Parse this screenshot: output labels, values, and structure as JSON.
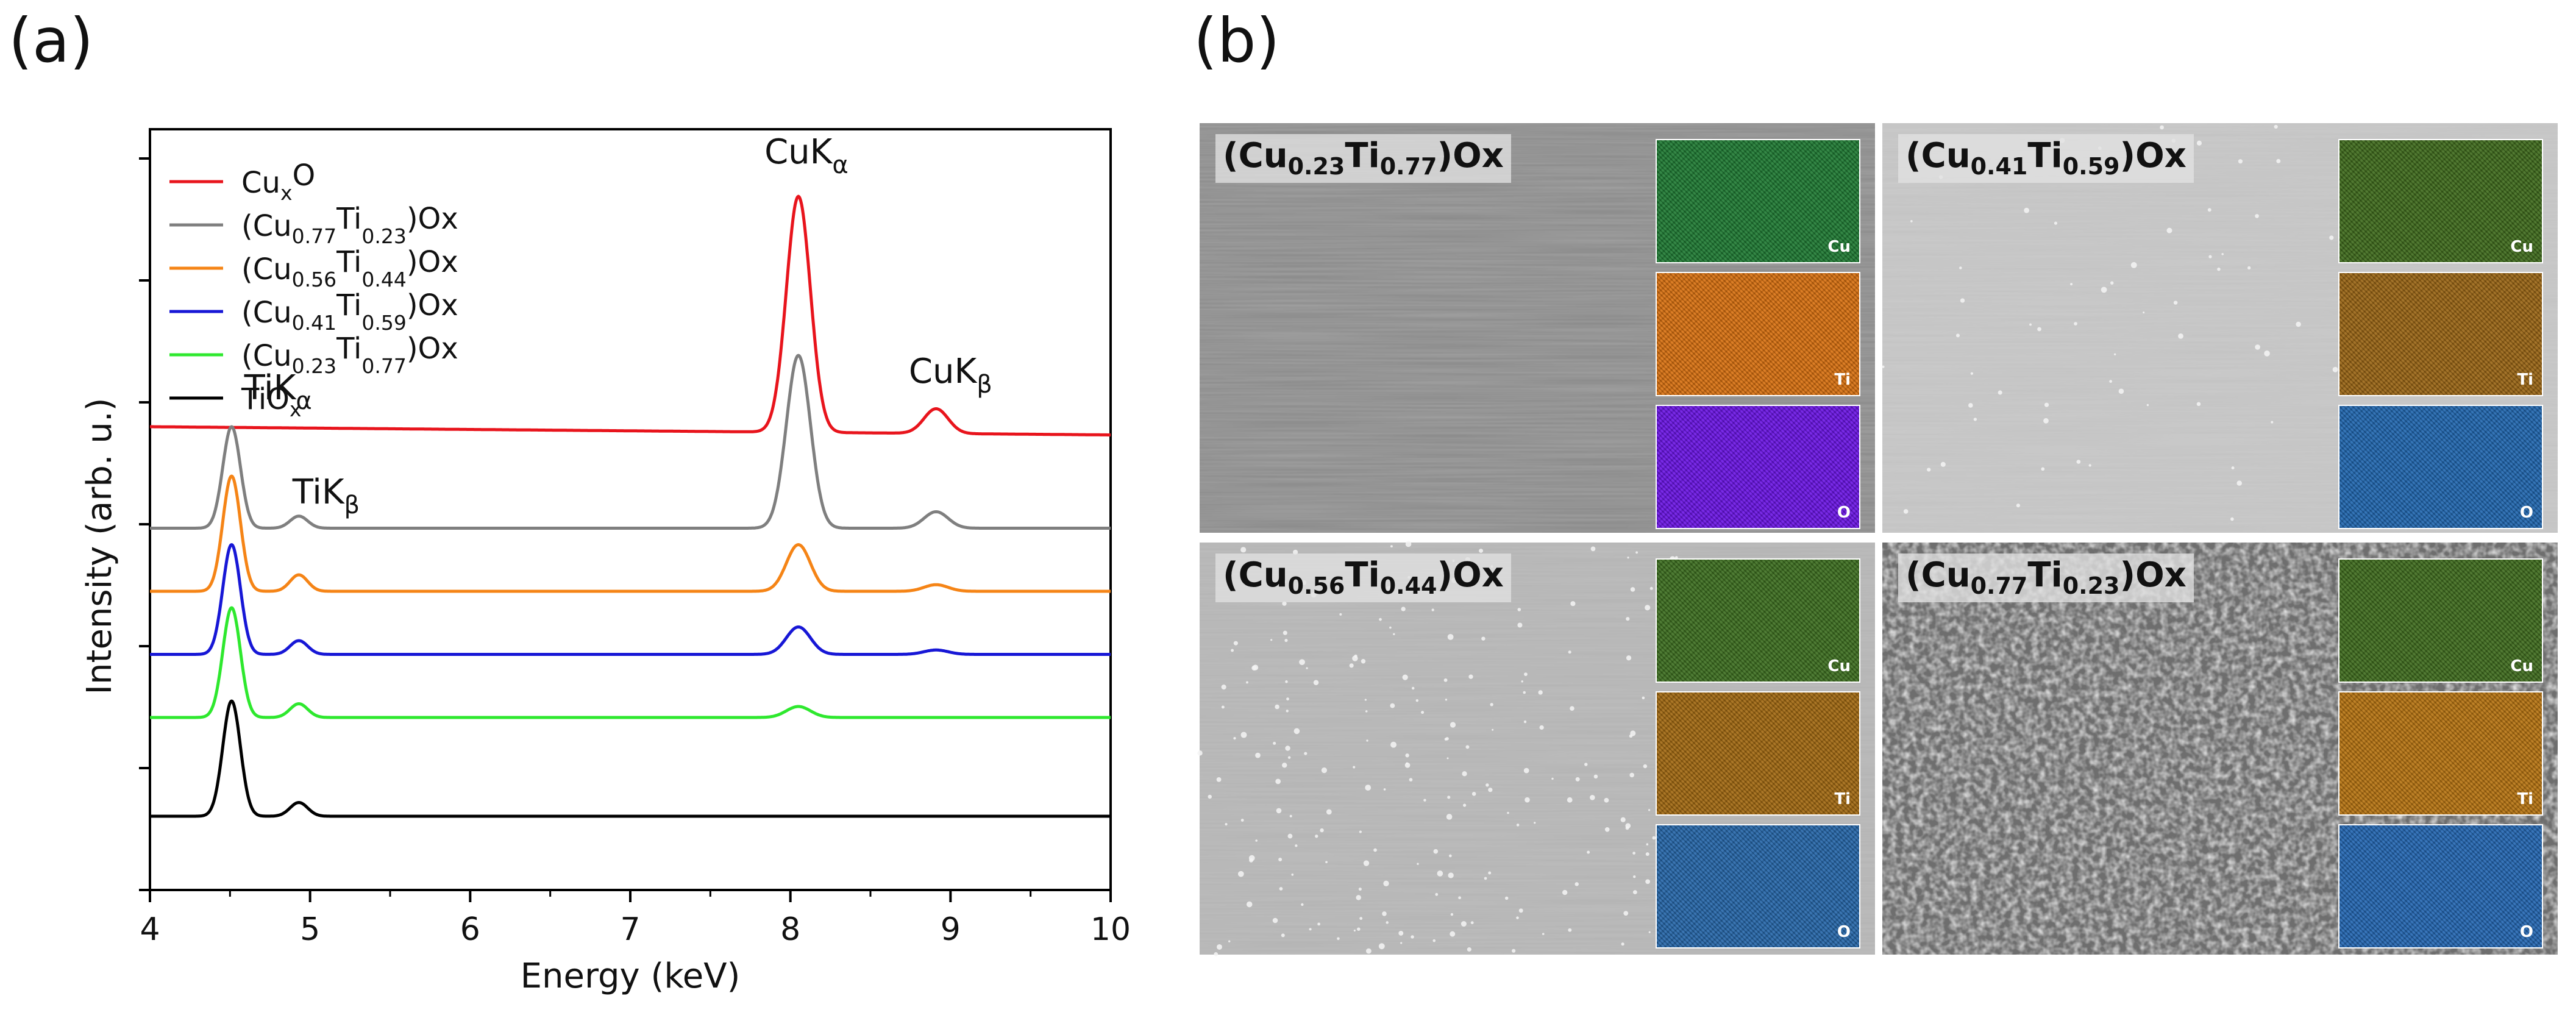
{
  "panel_labels": {
    "a": "(a)",
    "b": "(b)"
  },
  "chart_data": {
    "type": "line",
    "title": "",
    "xlabel": "Energy (keV)",
    "ylabel": "Intensity (arb. u.)",
    "xlim": [
      4,
      10
    ],
    "xticks": [
      "4",
      "5",
      "6",
      "7",
      "8",
      "9",
      "10"
    ],
    "grid": false,
    "legend_position": "top-left",
    "peak_positions_kev": {
      "TiKa": 4.51,
      "TiKb": 4.93,
      "CuKa": 8.05,
      "CuKb": 8.91
    },
    "series": [
      {
        "name": "CuxO",
        "color": "#e8141c",
        "baseline": 0.8,
        "baseline_end": 0.785,
        "peaks": {
          "TiKa": 0,
          "TiKb": 0,
          "CuKa": 0.43,
          "CuKb": 0.045
        }
      },
      {
        "name": "(Cu0.77Ti0.23)Ox",
        "color": "#7f7f7f",
        "baseline": 0.615,
        "baseline_end": 0.615,
        "peaks": {
          "TiKa": 0.185,
          "TiKb": 0.022,
          "CuKa": 0.315,
          "CuKb": 0.03
        }
      },
      {
        "name": "(Cu0.56Ti0.44)Ox",
        "color": "#f58416",
        "baseline": 0.5,
        "baseline_end": 0.5,
        "peaks": {
          "TiKa": 0.21,
          "TiKb": 0.03,
          "CuKa": 0.085,
          "CuKb": 0.012
        }
      },
      {
        "name": "(Cu0.41Ti0.59)Ox",
        "color": "#1717d6",
        "baseline": 0.385,
        "baseline_end": 0.385,
        "peaks": {
          "TiKa": 0.2,
          "TiKb": 0.025,
          "CuKa": 0.05,
          "CuKb": 0.008
        }
      },
      {
        "name": "(Cu0.23Ti0.77)Ox",
        "color": "#2ee82e",
        "baseline": 0.27,
        "baseline_end": 0.27,
        "peaks": {
          "TiKa": 0.2,
          "TiKb": 0.025,
          "CuKa": 0.02,
          "CuKb": 0.0
        }
      },
      {
        "name": "TiOx",
        "color": "#000000",
        "baseline": 0.09,
        "baseline_end": 0.09,
        "peaks": {
          "TiKa": 0.21,
          "TiKb": 0.025,
          "CuKa": 0.0,
          "CuKb": 0.0
        }
      }
    ],
    "annotations": [
      {
        "text": "TiK",
        "greek": "α",
        "at_kev": 4.8,
        "level": 0.85
      },
      {
        "text": "TiK",
        "greek": "β",
        "at_kev": 5.1,
        "level": 0.66
      },
      {
        "text": "CuK",
        "greek": "α",
        "at_kev": 8.1,
        "level": 1.28
      },
      {
        "text": "CuK",
        "greek": "β",
        "at_kev": 9.0,
        "level": 0.88
      }
    ]
  },
  "legend": [
    {
      "main": "Cu",
      "sub1": "x",
      "mid": "O",
      "sub2": "",
      "tail": ""
    },
    {
      "main": "(Cu",
      "sub1": "0.77",
      "mid": "Ti",
      "sub2": "0.23",
      "tail": ")Ox"
    },
    {
      "main": "(Cu",
      "sub1": "0.56",
      "mid": "Ti",
      "sub2": "0.44",
      "tail": ")Ox"
    },
    {
      "main": "(Cu",
      "sub1": "0.41",
      "mid": "Ti",
      "sub2": "0.59",
      "tail": ")Ox"
    },
    {
      "main": "(Cu",
      "sub1": "0.23",
      "mid": "Ti",
      "sub2": "0.77",
      "tail": ")Ox"
    },
    {
      "main": "TiO",
      "sub1": "x",
      "mid": "",
      "sub2": "",
      "tail": ""
    }
  ],
  "sem_tiles": [
    {
      "cu": "0.23",
      "ti": "0.77",
      "tail": ")Ox",
      "tone": "#8c8c8c",
      "grain": "smooth"
    },
    {
      "cu": "0.41",
      "ti": "0.59",
      "tail": ")Ox",
      "tone": "#c4c4c4",
      "grain": "fine"
    },
    {
      "cu": "0.56",
      "ti": "0.44",
      "tail": ")Ox",
      "tone": "#b5b5b5",
      "grain": "particles"
    },
    {
      "cu": "0.77",
      "ti": "0.23",
      "tail": ")Ox",
      "tone": "#6e6e6e",
      "grain": "coarse"
    }
  ],
  "map_labels": {
    "cu": "Cu",
    "ti": "Ti",
    "o": "O"
  },
  "map_colors": {
    "0": {
      "cu": "#1d7a32",
      "ti": "#d9700e",
      "o": "#6a12e6"
    },
    "1": {
      "cu": "#3d6a1a",
      "ti": "#9a6412",
      "o": "#1f66b0"
    },
    "2": {
      "cu": "#3b6e1e",
      "ti": "#a2680f",
      "o": "#2466aa"
    },
    "3": {
      "cu": "#3e6c1c",
      "ti": "#b7730f",
      "o": "#2266b3"
    }
  }
}
